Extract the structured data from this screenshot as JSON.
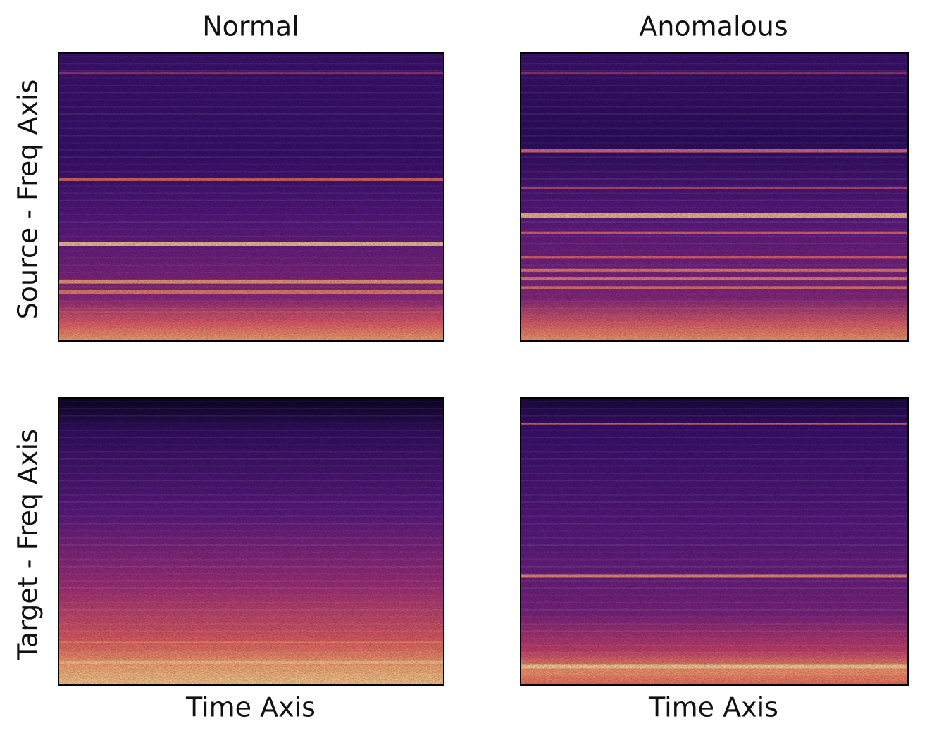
{
  "columns": [
    "Normal",
    "Anomalous"
  ],
  "rows": [
    "Source - Freq Axis",
    "Target - Freq Axis"
  ],
  "x_labels": [
    "Time Axis",
    "Time Axis"
  ]
}
